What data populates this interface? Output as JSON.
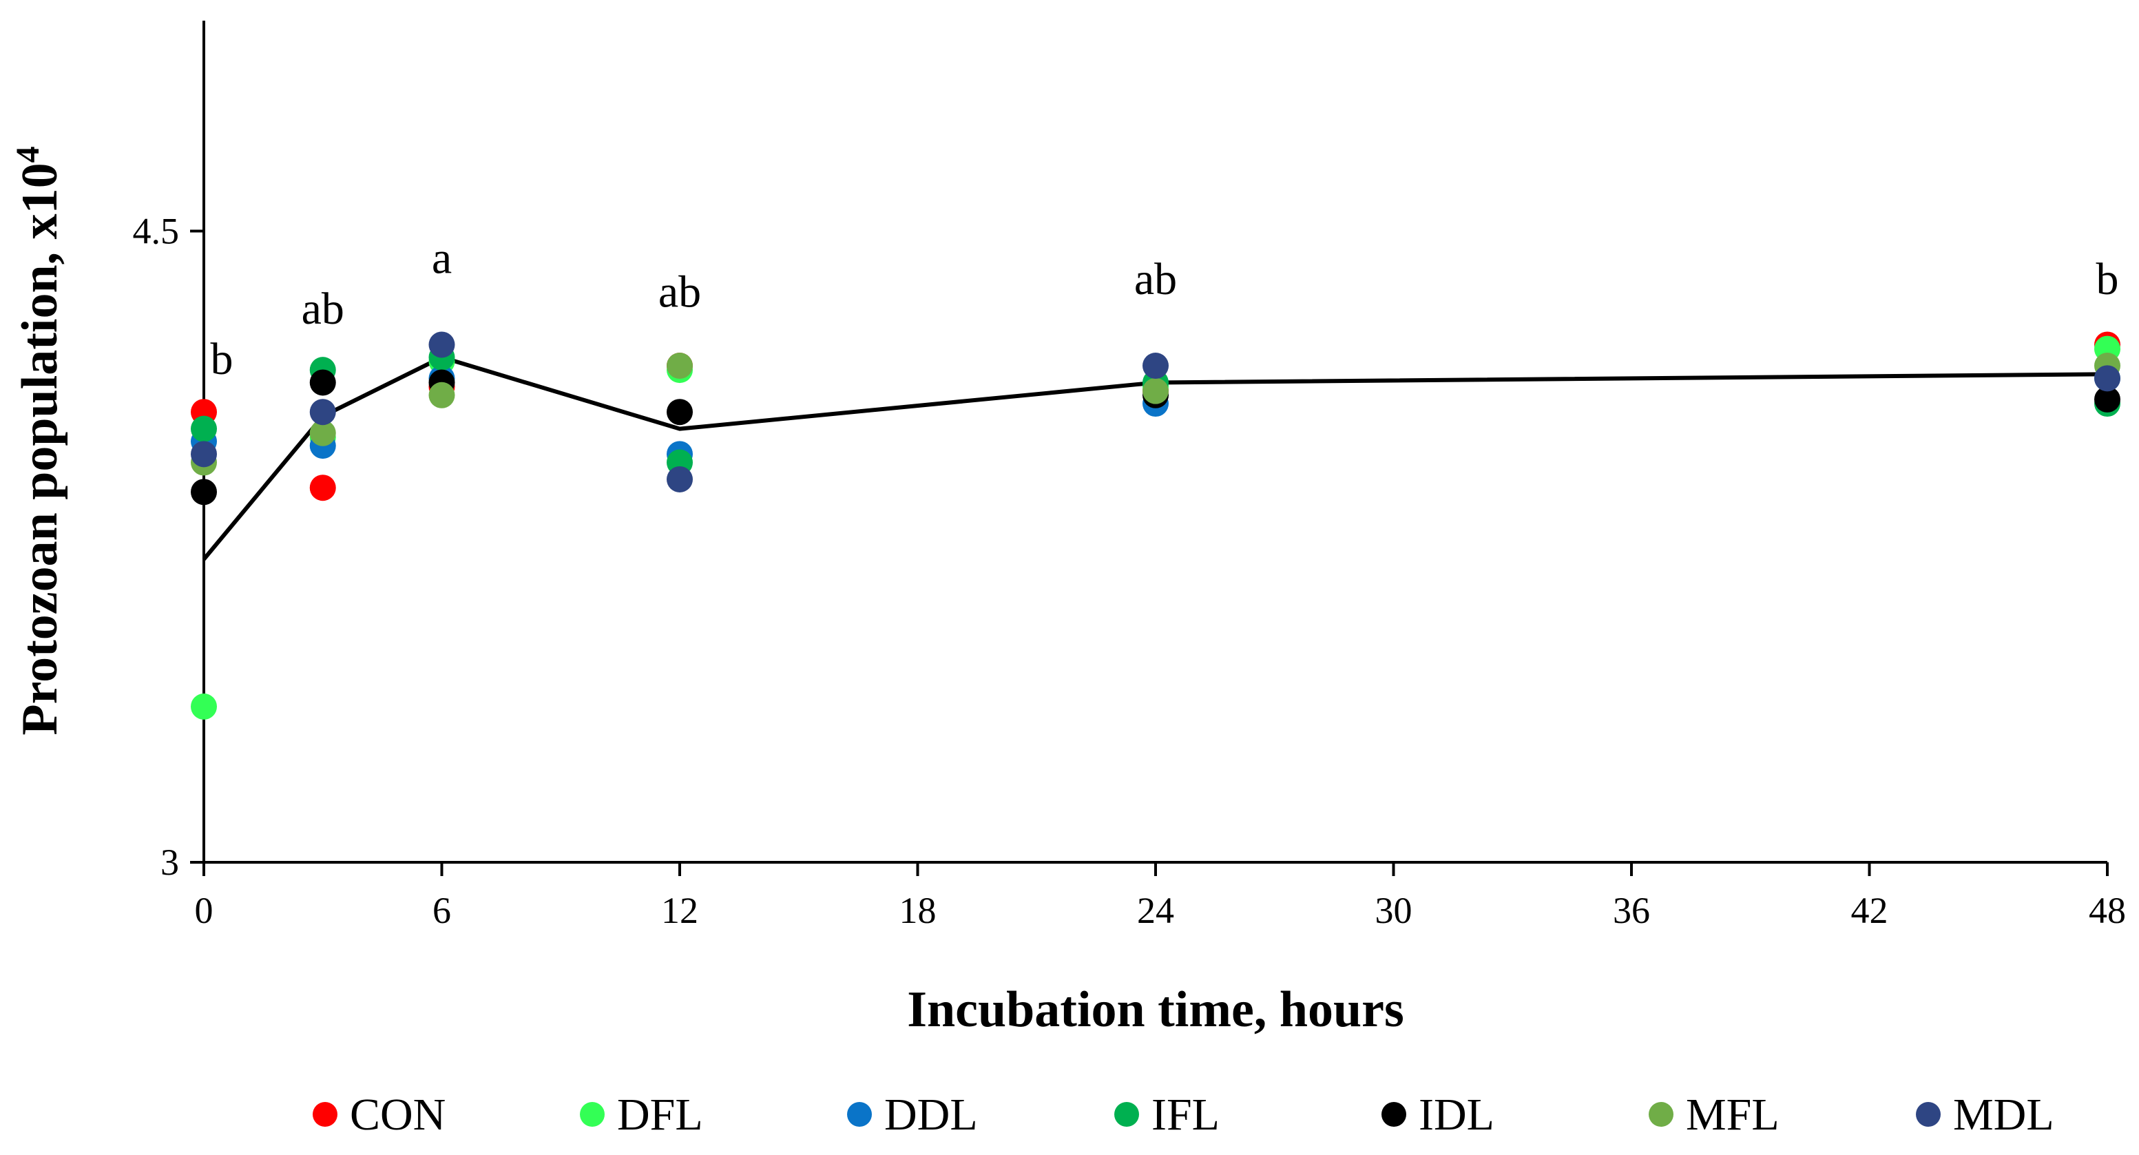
{
  "chart_data": {
    "type": "scatter",
    "title": "",
    "xlabel": "Incubation time, hours",
    "ylabel": "Protozoan population, x10",
    "ylabel_superscript": "4",
    "xlim": [
      0,
      48
    ],
    "ylim": [
      3,
      5
    ],
    "x_ticks": [
      0,
      6,
      12,
      18,
      24,
      30,
      36,
      42,
      48
    ],
    "y_ticks": [
      3,
      4.5
    ],
    "y_tick_labels": [
      "3",
      "4.5"
    ],
    "x": [
      0,
      3,
      6,
      12,
      24,
      48
    ],
    "series": [
      {
        "name": "CON",
        "color": "#ff0000",
        "values": [
          4.07,
          3.89,
          4.13,
          4.18,
          4.12,
          4.23
        ]
      },
      {
        "name": "DFL",
        "color": "#33ff55",
        "values": [
          3.37,
          4.01,
          4.19,
          4.17,
          4.13,
          4.22
        ]
      },
      {
        "name": "DDL",
        "color": "#0a74c8",
        "values": [
          4.0,
          3.99,
          4.15,
          3.97,
          4.09,
          4.15
        ]
      },
      {
        "name": "IFL",
        "color": "#00b050",
        "values": [
          4.03,
          4.17,
          4.2,
          3.95,
          4.14,
          4.09
        ]
      },
      {
        "name": "IDL",
        "color": "#000000",
        "values": [
          3.88,
          4.14,
          4.14,
          4.07,
          4.11,
          4.1
        ]
      },
      {
        "name": "MFL",
        "color": "#70ad47",
        "values": [
          3.95,
          4.02,
          4.11,
          4.18,
          4.12,
          4.18
        ]
      },
      {
        "name": "MDL",
        "color": "#2e4583",
        "values": [
          3.97,
          4.07,
          4.23,
          3.91,
          4.18,
          4.15
        ]
      }
    ],
    "mean_line": {
      "x": [
        0,
        3,
        6,
        12,
        24,
        48
      ],
      "values": [
        3.72,
        4.06,
        4.2,
        4.03,
        4.14,
        4.16
      ],
      "color": "#000000"
    },
    "annotations": [
      {
        "x": 0,
        "y": 4.16,
        "text": "b"
      },
      {
        "x": 3,
        "y": 4.28,
        "text": "ab"
      },
      {
        "x": 6,
        "y": 4.4,
        "text": "a"
      },
      {
        "x": 12,
        "y": 4.32,
        "text": "ab"
      },
      {
        "x": 24,
        "y": 4.35,
        "text": "ab"
      },
      {
        "x": 48,
        "y": 4.35,
        "text": "b"
      }
    ],
    "legend_position": "bottom-center"
  }
}
